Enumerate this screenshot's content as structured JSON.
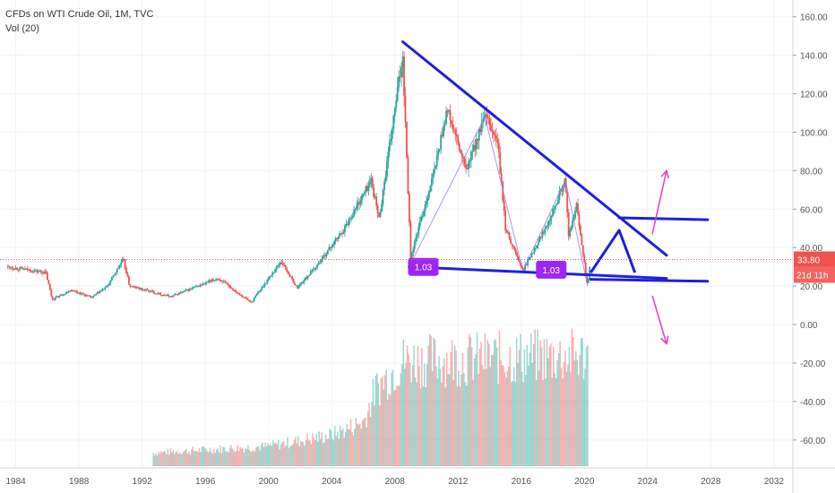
{
  "legend": {
    "symbol_line": "CFDs on WTI Crude Oil, 1M, TVC",
    "vol_line": "Vol (20)"
  },
  "price_label": "33.80",
  "countdown_label": "21d 11h",
  "fib_label_1": "1.03",
  "fib_label_2": "1.03",
  "colors": {
    "up": "#26a69a",
    "down": "#ef5350",
    "trend": "#1f1fe0",
    "arrow": "#e040c0",
    "label_bg": "#9c27f0",
    "price_line": "#ef5350"
  },
  "chart_data": {
    "type": "candlestick",
    "title": "CFDs on WTI Crude Oil, 1M, TVC",
    "x_ticks": [
      "1984",
      "1988",
      "1992",
      "1996",
      "2000",
      "2004",
      "2008",
      "2012",
      "2016",
      "2020",
      "2024",
      "2028",
      "2032"
    ],
    "y_ticks": [
      "160.00",
      "140.00",
      "120.00",
      "100.00",
      "80.00",
      "60.00",
      "40.00",
      "20.00",
      "0.00",
      "-20.00",
      "-40.00",
      "-60.00"
    ],
    "ylim": [
      -75,
      165
    ],
    "xlim": [
      1983.0,
      2033.2
    ],
    "last_price": 33.8,
    "price_anchors": [
      [
        1983.5,
        30
      ],
      [
        1985.9,
        27
      ],
      [
        1986.3,
        13
      ],
      [
        1987.5,
        18
      ],
      [
        1988.8,
        14
      ],
      [
        1989.8,
        20
      ],
      [
        1990.8,
        34
      ],
      [
        1991.2,
        20
      ],
      [
        1993.8,
        14.5
      ],
      [
        1996.8,
        24
      ],
      [
        1998.9,
        11.5
      ],
      [
        2000.8,
        33
      ],
      [
        2001.8,
        19
      ],
      [
        2003.0,
        30
      ],
      [
        2004.8,
        50
      ],
      [
        2006.5,
        75
      ],
      [
        2007.0,
        55
      ],
      [
        2008.5,
        140
      ],
      [
        2009.0,
        35
      ],
      [
        2010.5,
        80
      ],
      [
        2011.3,
        112
      ],
      [
        2012.5,
        80
      ],
      [
        2013.7,
        108
      ],
      [
        2014.5,
        95
      ],
      [
        2015.0,
        50
      ],
      [
        2016.1,
        28
      ],
      [
        2017.5,
        50
      ],
      [
        2018.8,
        75
      ],
      [
        2019.0,
        45
      ],
      [
        2019.5,
        62
      ],
      [
        2020.2,
        20
      ],
      [
        2020.4,
        33.8
      ]
    ],
    "volume": {
      "start": 1992.7,
      "end": 2020.2,
      "anchors": [
        [
          1992.7,
          0.12
        ],
        [
          2000,
          0.18
        ],
        [
          2004,
          0.28
        ],
        [
          2006,
          0.4
        ],
        [
          2006.8,
          0.7
        ],
        [
          2008.5,
          0.95
        ],
        [
          2020.2,
          1.0
        ]
      ],
      "scale_note": "relative"
    },
    "drawings": {
      "upper_trendline": [
        [
          2008.5,
          147
        ],
        [
          2025.2,
          36
        ]
      ],
      "lower_trendline": [
        [
          2008.9,
          30
        ],
        [
          2025.2,
          24
        ]
      ],
      "lower_channel_line": [
        [
          2020.4,
          23.5
        ],
        [
          2027.8,
          22.5
        ]
      ],
      "upper_channel_line": [
        [
          2022.2,
          55.5
        ],
        [
          2027.8,
          54.5
        ]
      ],
      "projection_path": [
        [
          2020.4,
          27
        ],
        [
          2022.2,
          49
        ],
        [
          2023.2,
          27
        ]
      ],
      "fib_lines": [
        [
          [
            2008.9,
            30
          ],
          [
            2013.7,
            108
          ]
        ],
        [
          [
            2013.7,
            108
          ],
          [
            2016.1,
            28
          ]
        ],
        [
          [
            2016.1,
            28
          ],
          [
            2018.8,
            75
          ]
        ],
        [
          [
            2018.8,
            75
          ],
          [
            2020.2,
            20
          ]
        ]
      ],
      "fib_label_positions": [
        [
          2009.8,
          30
        ],
        [
          2017.9,
          28.5
        ]
      ],
      "arrow_up": [
        [
          2024.3,
          47
        ],
        [
          2025.2,
          80
        ]
      ],
      "arrow_down": [
        [
          2024.3,
          15
        ],
        [
          2025.2,
          -10
        ]
      ]
    }
  }
}
